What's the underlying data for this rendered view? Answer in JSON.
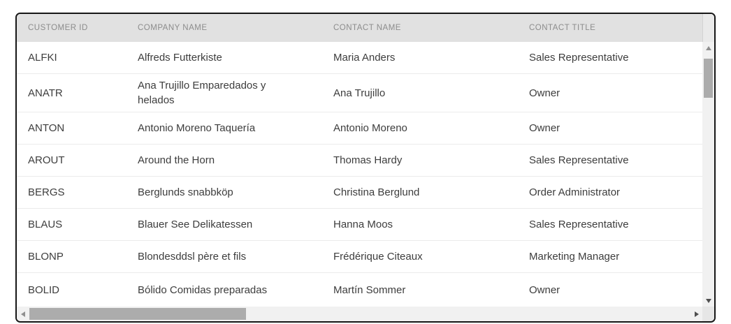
{
  "colors": {
    "widget_border": "#161616",
    "header_bg": "#e1e1e1",
    "header_text": "#8c8c8c",
    "body_text": "#3d3d3d",
    "row_divider": "#ebebeb",
    "scroll_track": "#f1f1f1",
    "scroll_thumb": "#acacac"
  },
  "table": {
    "columns": [
      {
        "id": "customerId",
        "label": "CUSTOMER ID"
      },
      {
        "id": "companyName",
        "label": "COMPANY NAME"
      },
      {
        "id": "contactName",
        "label": "CONTACT NAME"
      },
      {
        "id": "contactTitle",
        "label": "CONTACT TITLE"
      }
    ],
    "rows": [
      {
        "customerId": "ALFKI",
        "companyName": "Alfreds Futterkiste",
        "contactName": "Maria Anders",
        "contactTitle": "Sales Representative"
      },
      {
        "customerId": "ANATR",
        "companyName": "Ana Trujillo Emparedados y helados",
        "contactName": "Ana Trujillo",
        "contactTitle": "Owner"
      },
      {
        "customerId": "ANTON",
        "companyName": "Antonio Moreno Taquería",
        "contactName": "Antonio Moreno",
        "contactTitle": "Owner"
      },
      {
        "customerId": "AROUT",
        "companyName": "Around the Horn",
        "contactName": "Thomas Hardy",
        "contactTitle": "Sales Representative"
      },
      {
        "customerId": "BERGS",
        "companyName": "Berglunds snabbköp",
        "contactName": "Christina Berglund",
        "contactTitle": "Order Administrator"
      },
      {
        "customerId": "BLAUS",
        "companyName": "Blauer See Delikatessen",
        "contactName": "Hanna Moos",
        "contactTitle": "Sales Representative"
      },
      {
        "customerId": "BLONP",
        "companyName": "Blondesddsl père et fils",
        "contactName": "Frédérique Citeaux",
        "contactTitle": "Marketing Manager"
      },
      {
        "customerId": "BOLID",
        "companyName": "Bólido Comidas preparadas",
        "contactName": "Martín Sommer",
        "contactTitle": "Owner"
      }
    ]
  },
  "scrollbars": {
    "vertical": {
      "up_icon": "triangle-up",
      "down_icon": "triangle-down",
      "thumb": "near-top"
    },
    "horizontal": {
      "left_icon": "triangle-left",
      "right_icon": "triangle-right",
      "thumb": "left-third"
    }
  }
}
